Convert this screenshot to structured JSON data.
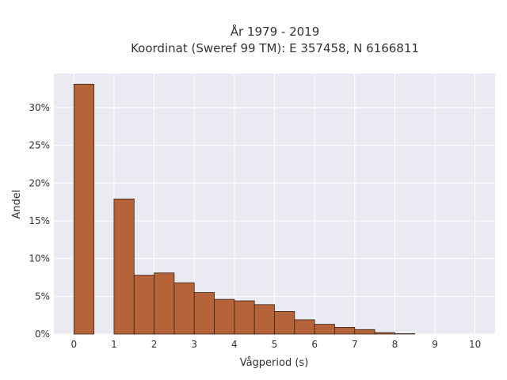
{
  "chart_data": {
    "type": "bar",
    "title_line1": "År 1979 - 2019",
    "title_line2": "Koordinat (Sweref 99 TM): E 357458, N 6166811",
    "xlabel": "Vågperiod (s)",
    "ylabel": "Andel",
    "xlim": [
      -0.5,
      10.5
    ],
    "ylim": [
      0,
      34.5
    ],
    "bin_width": 0.5,
    "bins": [
      {
        "start": 0.0,
        "value": 33.1
      },
      {
        "start": 0.5,
        "value": 0
      },
      {
        "start": 1.0,
        "value": 17.9
      },
      {
        "start": 1.5,
        "value": 7.8
      },
      {
        "start": 2.0,
        "value": 8.1
      },
      {
        "start": 2.5,
        "value": 6.8
      },
      {
        "start": 3.0,
        "value": 5.5
      },
      {
        "start": 3.5,
        "value": 4.6
      },
      {
        "start": 4.0,
        "value": 4.4
      },
      {
        "start": 4.5,
        "value": 3.9
      },
      {
        "start": 5.0,
        "value": 3.0
      },
      {
        "start": 5.5,
        "value": 1.9
      },
      {
        "start": 6.0,
        "value": 1.3
      },
      {
        "start": 6.5,
        "value": 0.9
      },
      {
        "start": 7.0,
        "value": 0.6
      },
      {
        "start": 7.5,
        "value": 0.2
      },
      {
        "start": 8.0,
        "value": 0.05
      }
    ],
    "xticks": [
      0,
      1,
      2,
      3,
      4,
      5,
      6,
      7,
      8,
      9,
      10
    ],
    "xtick_labels": [
      "0",
      "1",
      "2",
      "3",
      "4",
      "5",
      "6",
      "7",
      "8",
      "9",
      "10"
    ],
    "yticks": [
      0,
      5,
      10,
      15,
      20,
      25,
      30
    ],
    "ytick_labels": [
      "0%",
      "5%",
      "10%",
      "15%",
      "20%",
      "25%",
      "30%"
    ],
    "grid": true,
    "colors": {
      "bar_fill": "#b5643a",
      "plot_background": "#eaeaf2",
      "grid": "#ffffff"
    }
  }
}
